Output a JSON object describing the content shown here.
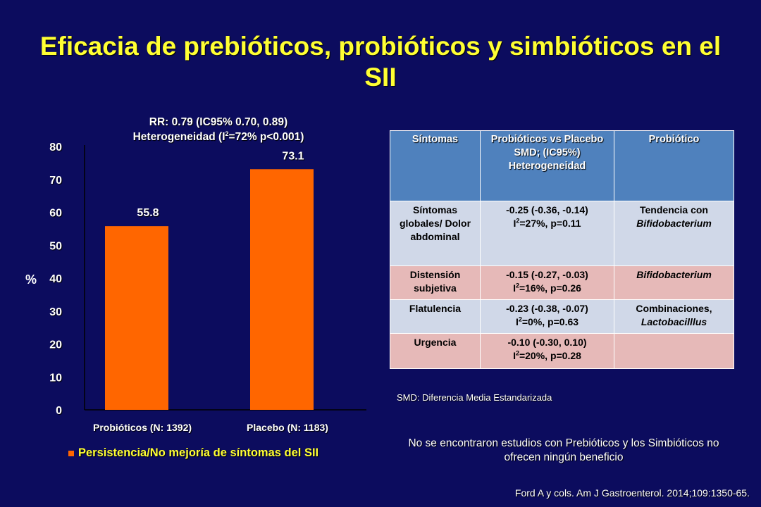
{
  "title": "Eficacia de prebióticos, probióticos y simbióticos en el SII",
  "rr_text": {
    "line1": "RR: 0.79 (IC95% 0.70, 0.89)",
    "line2_pre": "Heterogeneidad (I",
    "line2_sup": "2",
    "line2_post": "=72% p<0.001)"
  },
  "chart_data": {
    "type": "bar",
    "categories": [
      "Probióticos (N: 1392)",
      "Placebo (N: 1183)"
    ],
    "values": [
      55.8,
      73.1
    ],
    "value_labels": [
      "55.8",
      "73.1"
    ],
    "ylabel": "%",
    "ylim": [
      0,
      80
    ],
    "yticks": [
      0,
      10,
      20,
      30,
      40,
      50,
      60,
      70,
      80
    ],
    "bar_color": "#ff6600",
    "grid": false,
    "legend": "Persistencia/No mejoría de síntomas del SII"
  },
  "table": {
    "headers": [
      "Síntomas",
      "Probióticos vs Placebo SMD; (IC95%) Heterogeneidad",
      "Probiótico"
    ],
    "rows": [
      {
        "symptom": "Síntomas globales/ Dolor abdominal",
        "smd": "-0.25 (-0.36, -0.14)",
        "het_pre": "I",
        "het_sup": "2",
        "het_post": "=27%, p=0.11",
        "prob_plain": "Tendencia con",
        "prob_italic": "Bifidobacterium"
      },
      {
        "symptom": "Distensión subjetiva",
        "smd": "-0.15 (-0.27, -0.03)",
        "het_pre": "I",
        "het_sup": "2",
        "het_post": "=16%, p=0.26",
        "prob_plain": "",
        "prob_italic": "Bifidobacterium"
      },
      {
        "symptom": "Flatulencia",
        "smd": "-0.23 (-0.38, -0.07)",
        "het_pre": "I",
        "het_sup": "2",
        "het_post": "=0%, p=0.63",
        "prob_plain": "Combinaciones,",
        "prob_italic": "Lactobacilllus"
      },
      {
        "symptom": "Urgencia",
        "smd": "-0.10 (-0.30, 0.10)",
        "het_pre": "I",
        "het_sup": "2",
        "het_post": "=20%, p=0.28",
        "prob_plain": "",
        "prob_italic": ""
      }
    ]
  },
  "smd_note": "SMD: Diferencia Media Estandarizada",
  "conclusion": "No se encontraron estudios con Prebióticos y los Simbióticos no ofrecen ningún beneficio",
  "citation": "Ford A y cols. Am J Gastroenterol. 2014;109:1350-65."
}
